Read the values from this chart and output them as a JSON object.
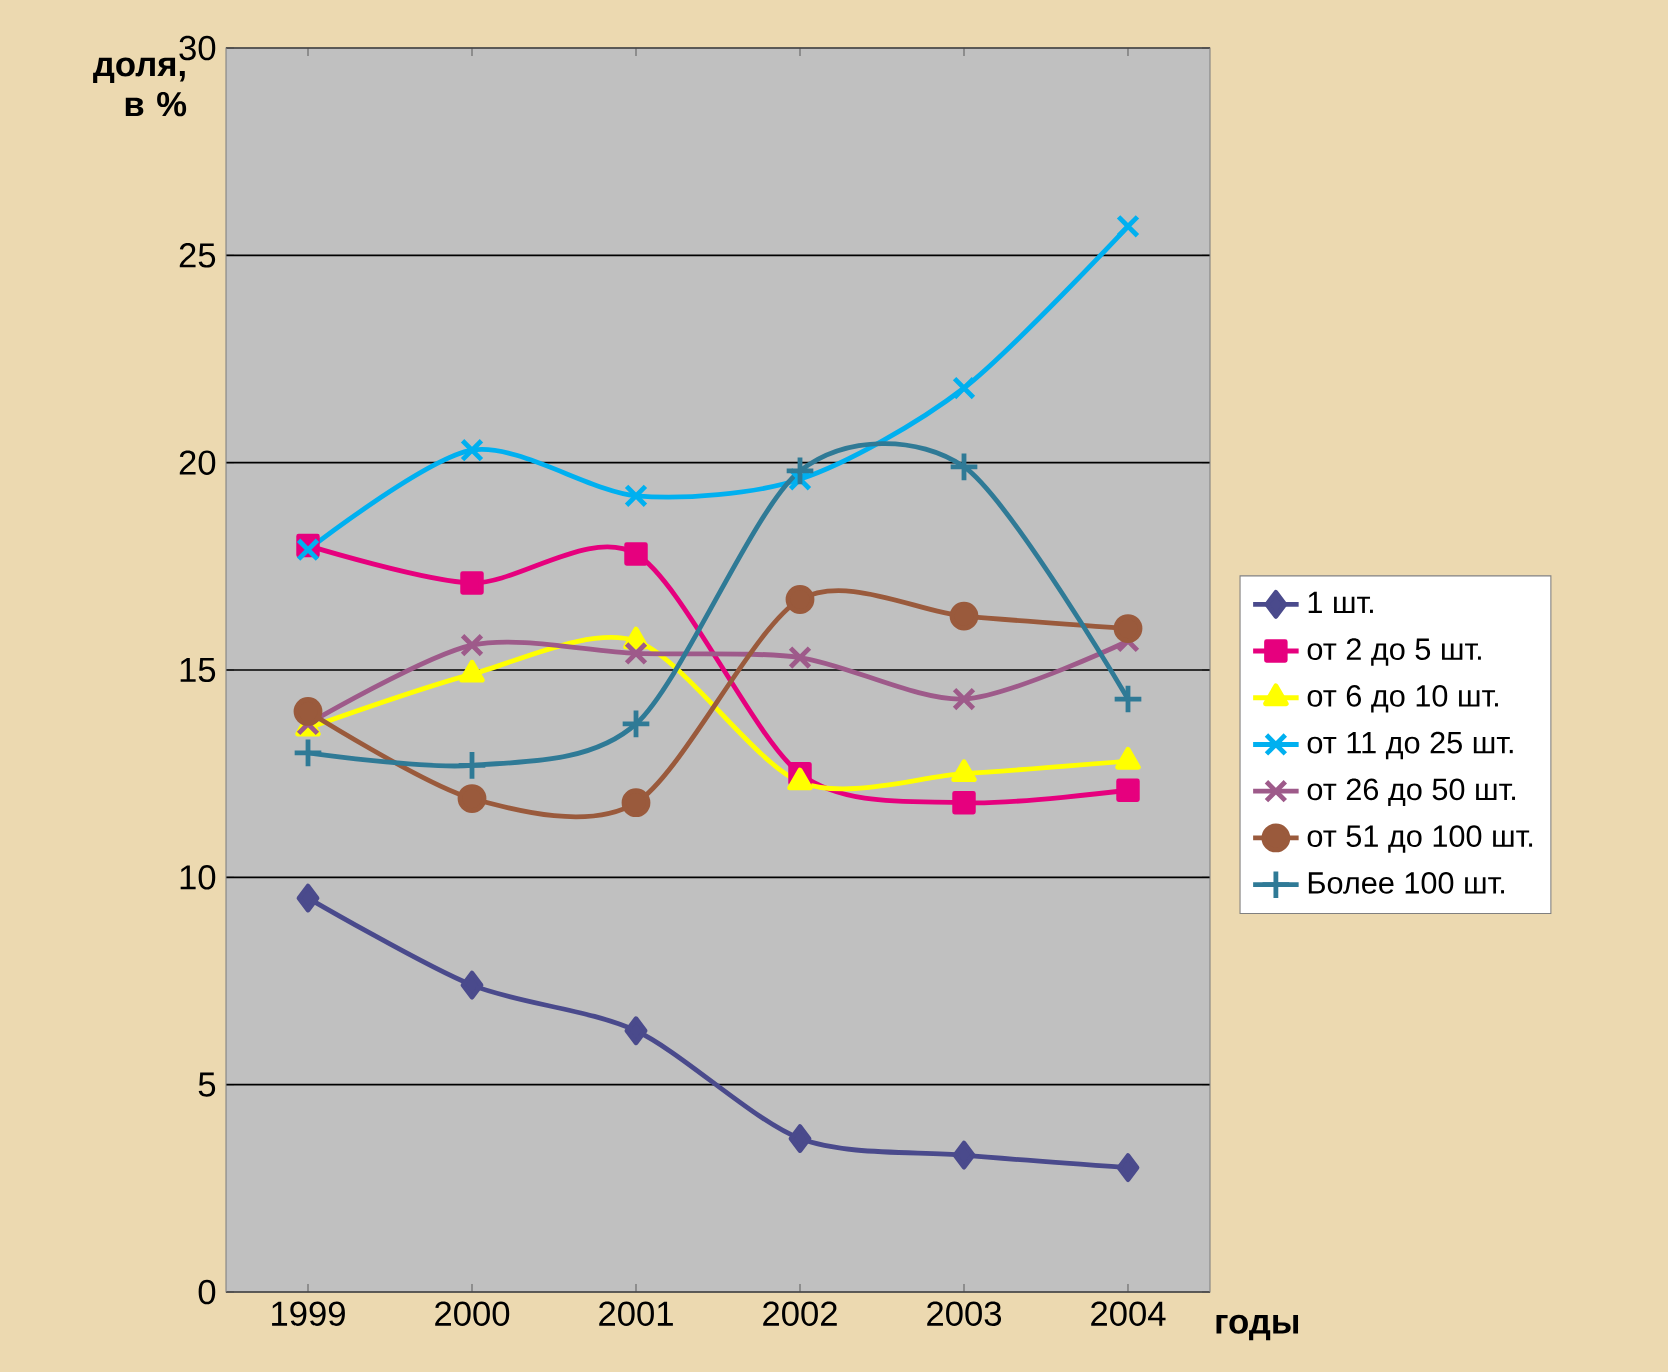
{
  "chart_data": {
    "type": "line",
    "ylabel": "доля, в %",
    "xlabel": "годы",
    "categories": [
      "1999",
      "2000",
      "2001",
      "2002",
      "2003",
      "2004"
    ],
    "ylim": [
      0,
      30
    ],
    "yticks": [
      0,
      5,
      10,
      15,
      20,
      25,
      30
    ],
    "grid": "y",
    "legend": "right",
    "series": [
      {
        "name": "1 шт.",
        "color": "#4a4a8c",
        "marker": "diamond",
        "values": [
          9.5,
          7.4,
          6.3,
          3.7,
          3.3,
          3.0
        ]
      },
      {
        "name": "от 2 до 5 шт.",
        "color": "#e6007e",
        "marker": "square",
        "values": [
          18.0,
          17.1,
          17.8,
          12.5,
          11.8,
          12.1
        ]
      },
      {
        "name": "от 6 до 10 шт.",
        "color": "#ffff00",
        "marker": "triangle",
        "values": [
          13.6,
          14.9,
          15.7,
          12.3,
          12.5,
          12.8
        ]
      },
      {
        "name": "от 11 до 25 шт.",
        "color": "#00b0f0",
        "marker": "cross",
        "values": [
          17.9,
          20.3,
          19.2,
          19.6,
          21.8,
          25.7
        ]
      },
      {
        "name": "от 26 до 50 шт.",
        "color": "#9e5a8a",
        "marker": "cross",
        "values": [
          13.7,
          15.6,
          15.4,
          15.3,
          14.3,
          15.7
        ]
      },
      {
        "name": "от 51 до 100 шт.",
        "color": "#9a5a3c",
        "marker": "circle",
        "values": [
          14.0,
          11.9,
          11.8,
          16.7,
          16.3,
          16.0
        ]
      },
      {
        "name": "Более 100 шт.",
        "color": "#2f7a96",
        "marker": "plus",
        "values": [
          13.0,
          12.7,
          13.7,
          19.8,
          19.9,
          14.3
        ]
      }
    ]
  }
}
